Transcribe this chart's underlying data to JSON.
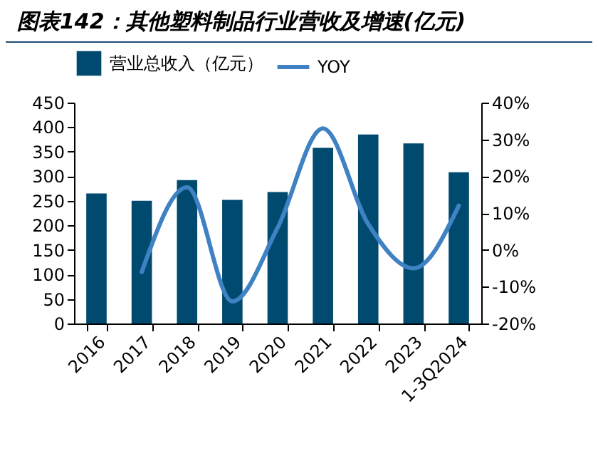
{
  "chart_data": {
    "type": "bar",
    "title": "图表142：其他塑料制品行业营收及增速(亿元)",
    "categories": [
      "2016",
      "2017",
      "2018",
      "2019",
      "2020",
      "2021",
      "2022",
      "2023",
      "1-3Q2024"
    ],
    "series": [
      {
        "name": "营业总收入（亿元）",
        "color": "#004a70",
        "values": [
          265,
          250,
          292,
          252,
          268,
          358,
          385,
          367,
          308
        ]
      },
      {
        "name": "YOY",
        "type": "line",
        "axis": "y2",
        "color": "#3e82c4",
        "values": [
          null,
          -6,
          17,
          -14,
          6,
          33,
          7,
          -5,
          12
        ]
      }
    ],
    "ylim": [
      0,
      450
    ],
    "yticks": [
      0,
      50,
      100,
      150,
      200,
      250,
      300,
      350,
      400,
      450
    ],
    "y2lim": [
      -20,
      40
    ],
    "y2ticks": [
      {
        "value": -20,
        "label": "-20%"
      },
      {
        "value": -10,
        "label": "-10%"
      },
      {
        "value": 0,
        "label": "0%"
      },
      {
        "value": 10,
        "label": "10%"
      },
      {
        "value": 20,
        "label": "20%"
      },
      {
        "value": 30,
        "label": "30%"
      },
      {
        "value": 40,
        "label": "40%"
      }
    ],
    "grid": false,
    "legend": "top"
  }
}
